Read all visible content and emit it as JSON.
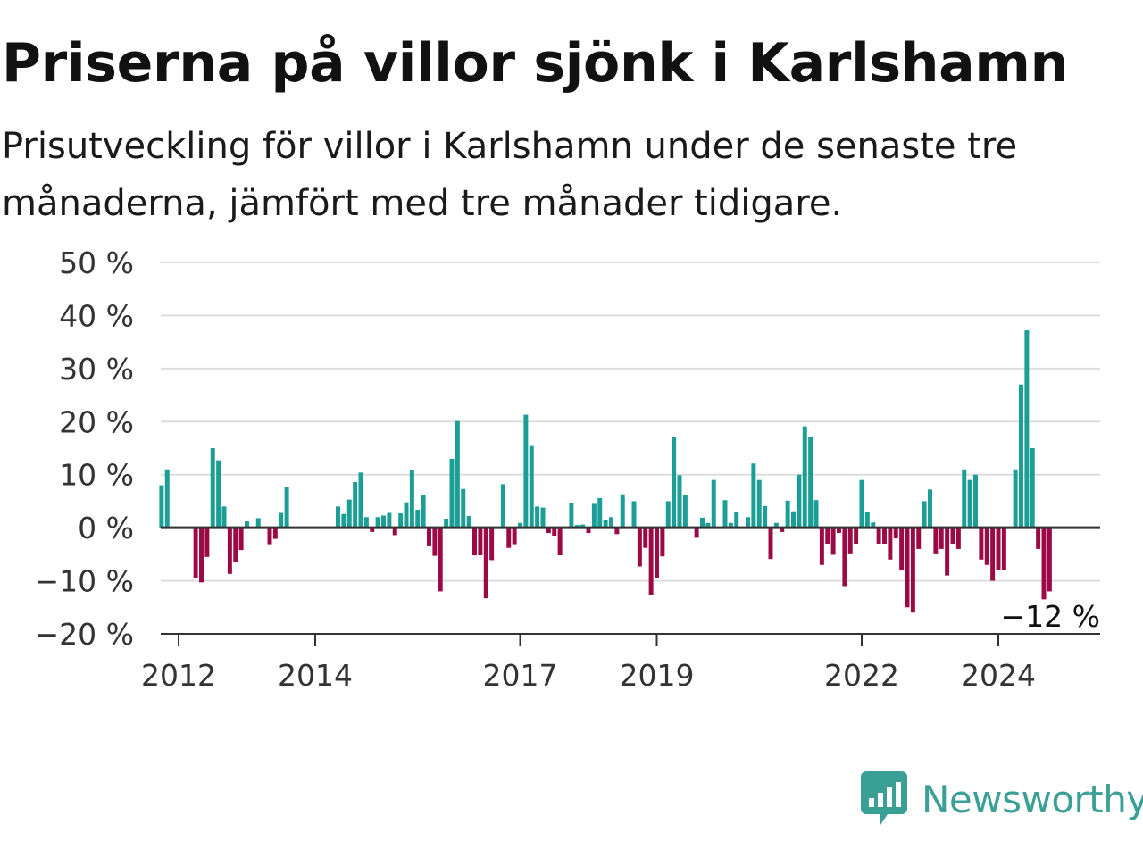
{
  "title": "Priserna på villor sjönk i Karlshamn",
  "subtitle": "Prisutveckling för villor i Karlshamn under de senaste tre månaderna, jämfört med tre månader tidigare.",
  "brand": {
    "name": "Newsworthy",
    "logo_icon": "newsworthy-bar-chart-speech-bubble-icon"
  },
  "colors": {
    "positive": "#1a9e96",
    "negative": "#9c0a45",
    "grid": "#dddddd",
    "zero_line": "#333333",
    "brand": "#3a9f95"
  },
  "chart_data": {
    "type": "bar",
    "ylim": [
      -20,
      50
    ],
    "y_ticks": [
      50,
      40,
      30,
      20,
      10,
      0,
      -10,
      -20
    ],
    "y_tick_labels": [
      "50 %",
      "40 %",
      "30 %",
      "20 %",
      "10 %",
      "0 %",
      "−10 %",
      "−20 %"
    ],
    "x_tick_labels": [
      "2012",
      "2014",
      "2017",
      "2019",
      "2022",
      "2024"
    ],
    "x_tick_years": [
      2012,
      2014,
      2017,
      2019,
      2022,
      2024
    ],
    "x_start": 2011.75,
    "x_step_months": 1,
    "end_label": "−12 %",
    "grid": true,
    "values": [
      8,
      11,
      0,
      0,
      0,
      0,
      -9.5,
      -10.3,
      -5.5,
      15,
      12.7,
      4,
      -8.7,
      -6.5,
      -4.2,
      1.2,
      0,
      1.8,
      0,
      -3.1,
      -2.1,
      2.8,
      7.7,
      0,
      0,
      0,
      0,
      0,
      0,
      0,
      0,
      4,
      2.6,
      5.3,
      8.6,
      10.4,
      2,
      -0.8,
      2,
      2.3,
      2.8,
      -1.4,
      2.7,
      4.8,
      10.9,
      3.4,
      6.1,
      -3.5,
      -5.3,
      -12,
      1.7,
      13,
      20.1,
      7.3,
      2.2,
      -5.2,
      -5.2,
      -13.3,
      -6.1,
      0,
      8.2,
      -3.8,
      -3.1,
      0.9,
      21.3,
      15.4,
      4,
      3.8,
      -1,
      -1.5,
      -5.2,
      0,
      4.6,
      0.5,
      0.6,
      -1,
      4.5,
      5.6,
      1.4,
      2,
      -1.2,
      6.3,
      0,
      5,
      -7.3,
      -3.8,
      -12.6,
      -9.5,
      -5.4,
      5,
      17.1,
      9.9,
      6.1,
      0,
      -1.9,
      1.9,
      0.9,
      9,
      0,
      5.2,
      0.9,
      3,
      0,
      2,
      12.1,
      9,
      4.1,
      -5.9,
      0.9,
      -0.8,
      5.1,
      3.1,
      10,
      19.1,
      17.2,
      5.2,
      -7,
      -3,
      -5.1,
      -1,
      -11,
      -5,
      -3,
      9,
      3,
      1,
      -3,
      -3,
      -6,
      -2,
      -8,
      -15,
      -16,
      -4,
      5,
      7.2,
      -5,
      -4,
      -9,
      -3,
      -4,
      11,
      9,
      10,
      -6,
      -7,
      -10,
      -8,
      -8,
      0,
      11,
      27,
      37.2,
      15,
      -4,
      -13.5,
      -12
    ]
  }
}
